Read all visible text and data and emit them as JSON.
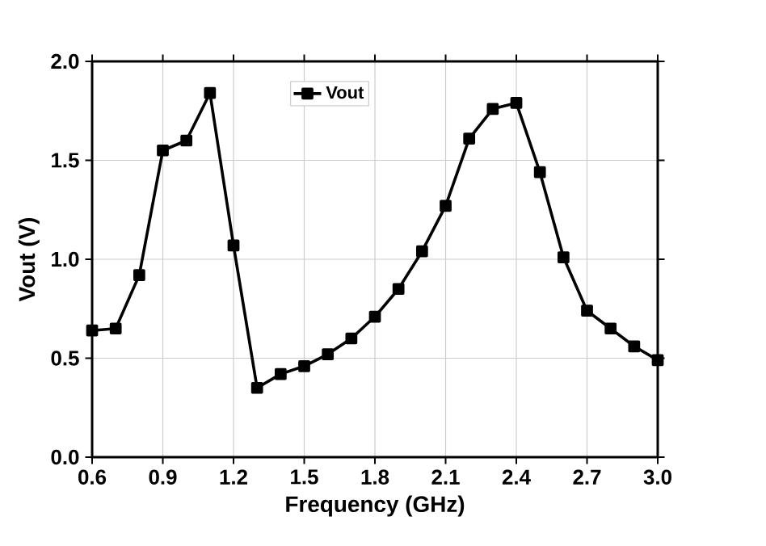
{
  "chart_data": {
    "type": "line",
    "xlabel": "Frequency (GHz)",
    "ylabel": "Vout (V)",
    "x": [
      0.6,
      0.7,
      0.8,
      0.9,
      1.0,
      1.1,
      1.2,
      1.3,
      1.4,
      1.5,
      1.6,
      1.7,
      1.8,
      1.9,
      2.0,
      2.1,
      2.2,
      2.3,
      2.4,
      2.5,
      2.6,
      2.7,
      2.8,
      2.9,
      3.0
    ],
    "series": [
      {
        "name": "Vout",
        "color": "#000000",
        "values": [
          0.64,
          0.65,
          0.92,
          1.55,
          1.6,
          1.84,
          1.07,
          0.35,
          0.42,
          0.46,
          0.52,
          0.6,
          0.71,
          0.85,
          1.04,
          1.27,
          1.61,
          1.76,
          1.79,
          1.44,
          1.01,
          0.74,
          0.65,
          0.56,
          0.49
        ]
      }
    ],
    "xlim": [
      0.6,
      3.0
    ],
    "ylim": [
      0.0,
      2.0
    ],
    "xticks": [
      0.6,
      0.9,
      1.2,
      1.5,
      1.8,
      2.1,
      2.4,
      2.7,
      {
        "value": 3,
        "label": "3.0"
      }
    ],
    "yticks": [
      {
        "value": 0,
        "label": "0.0"
      },
      0.5,
      {
        "value": 1,
        "label": "1.0"
      },
      1.5,
      {
        "value": 2,
        "label": "2.0"
      }
    ],
    "grid": true,
    "legend": "top",
    "marker": "square",
    "line_style": "solid"
  }
}
